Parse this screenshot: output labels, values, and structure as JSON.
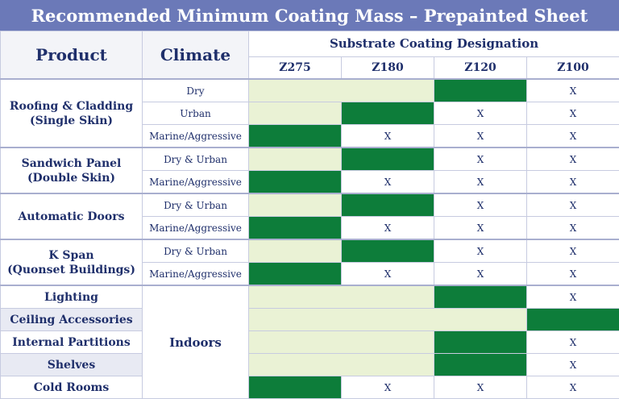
{
  "title": "Recommended Minimum Coating Mass – Prepainted Sheet",
  "headers": {
    "product": "Product",
    "climate": "Climate",
    "substrate": "Substrate Coating Designation",
    "designations": [
      "Z275",
      "Z180",
      "Z120",
      "Z100"
    ]
  },
  "colors": {
    "light": "#eaf2d5",
    "dark": "#0d7d3a",
    "header": "#6b79b8"
  },
  "rows": [
    {
      "product": "Roofing & Cladding (Single Skin)",
      "climate": "Dry",
      "cells": [
        "light",
        "light",
        "dark",
        "X"
      ]
    },
    {
      "climate": "Urban",
      "cells": [
        "light",
        "dark",
        "X",
        "X"
      ]
    },
    {
      "climate": "Marine/Aggressive",
      "cells": [
        "dark",
        "X",
        "X",
        "X"
      ]
    },
    {
      "product": "Sandwich Panel (Double Skin)",
      "climate": "Dry & Urban",
      "cells": [
        "light",
        "dark",
        "X",
        "X"
      ]
    },
    {
      "climate": "Marine/Aggressive",
      "cells": [
        "dark",
        "X",
        "X",
        "X"
      ]
    },
    {
      "product": "Automatic Doors",
      "climate": "Dry & Urban",
      "cells": [
        "light",
        "dark",
        "X",
        "X"
      ]
    },
    {
      "climate": "Marine/Aggressive",
      "cells": [
        "dark",
        "X",
        "X",
        "X"
      ]
    },
    {
      "product": "K Span (Quonset Buildings)",
      "climate": "Dry & Urban",
      "cells": [
        "light",
        "dark",
        "X",
        "X"
      ]
    },
    {
      "climate": "Marine/Aggressive",
      "cells": [
        "dark",
        "X",
        "X",
        "X"
      ]
    },
    {
      "product": "Lighting",
      "climate": "Indoors",
      "cells": [
        "light",
        "light",
        "dark",
        "X"
      ]
    },
    {
      "product": "Ceiling Accessories",
      "cells": [
        "light",
        "light",
        "light",
        "dark"
      ]
    },
    {
      "product": "Internal Partitions",
      "cells": [
        "light",
        "light",
        "dark",
        "X"
      ]
    },
    {
      "product": "Shelves",
      "cells": [
        "light",
        "light",
        "dark",
        "X"
      ]
    },
    {
      "product": "Cold Rooms",
      "cells": [
        "dark",
        "X",
        "X",
        "X"
      ]
    }
  ],
  "labels": {
    "p_roof_1": "Roofing & Cladding",
    "p_roof_2": "(Single Skin)",
    "p_sand_1": "Sandwich Panel",
    "p_sand_2": "(Double Skin)",
    "p_auto": "Automatic Doors",
    "p_kspan_1": "K Span",
    "p_kspan_2": "(Quonset Buildings)",
    "p_light": "Lighting",
    "p_ceil": "Ceiling Accessories",
    "p_int": "Internal Partitions",
    "p_shelves": "Shelves",
    "p_cold": "Cold Rooms",
    "c_dry": "Dry",
    "c_urban": "Urban",
    "c_marine": "Marine/Aggressive",
    "c_dryurban": "Dry & Urban",
    "c_indoors": "Indoors",
    "x": "X"
  }
}
